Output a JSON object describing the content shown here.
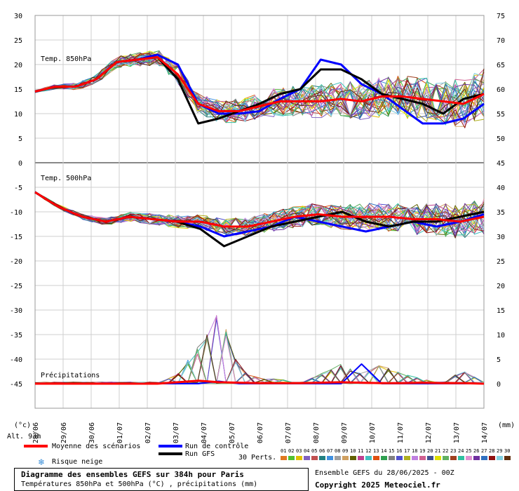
{
  "colors": {
    "mean": "#ff0000",
    "control": "#0000ff",
    "gfs": "#000000",
    "grid": "#c8c8c8",
    "snow": "#3a8fd9"
  },
  "labels": {
    "t850": "Temp. 850hPa",
    "t500": "Temp. 500hPa",
    "precip": "Précipitations",
    "unit_left": "(°c)",
    "unit_right": "(mm)",
    "altitude": "Alt. 93m",
    "mean_legend": "Moyenne des scénarios",
    "control_legend": "Run de contrôle",
    "gfs_legend": "Run GFS",
    "snow_legend": "Risque neige",
    "perts": "30 Perts.",
    "title_line1": "Diagramme des ensembles GEFS sur 384h pour Paris",
    "title_line2": "Températures 850hPa et 500hPa (°C) , précipitations (mm)",
    "run_info": "Ensemble GEFS du 28/06/2025 - 00Z",
    "copyright": "Copyright 2025 Meteociel.fr"
  },
  "pert_labels": [
    "01",
    "02",
    "03",
    "04",
    "05",
    "06",
    "07",
    "08",
    "09",
    "10",
    "11",
    "12",
    "13",
    "14",
    "15",
    "16",
    "17",
    "18",
    "19",
    "20",
    "21",
    "22",
    "23",
    "24",
    "25",
    "26",
    "27",
    "28",
    "29",
    "30"
  ],
  "pert_colors": [
    "#e07820",
    "#50c030",
    "#e0c000",
    "#8060c0",
    "#c05050",
    "#208080",
    "#4090e0",
    "#a0a0a0",
    "#d0a060",
    "#606000",
    "#c04090",
    "#40c0c0",
    "#e05010",
    "#30a050",
    "#808080",
    "#5050d0",
    "#b0b020",
    "#c080e0",
    "#d06090",
    "#405090",
    "#e0e000",
    "#60b060",
    "#a04020",
    "#30c0a0",
    "#e090d0",
    "#7030a0",
    "#3070c0",
    "#901010",
    "#80d0e0",
    "#603010"
  ],
  "chart_data": {
    "type": "line",
    "x_dates": [
      "28/06",
      "29/06",
      "30/06",
      "01/07",
      "02/07",
      "03/07",
      "04/07",
      "05/07",
      "06/07",
      "07/07",
      "08/07",
      "09/07",
      "10/07",
      "11/07",
      "12/07",
      "13/07",
      "14/07"
    ],
    "left_axis_ticks": [
      30,
      25,
      20,
      15,
      10,
      5,
      0,
      -5,
      -10,
      -15,
      -20,
      -25,
      -30,
      -35,
      -40,
      -45
    ],
    "right_axis_ticks": [
      75,
      70,
      65,
      60,
      55,
      50,
      45,
      40,
      35,
      30,
      25,
      20,
      15,
      10,
      5,
      0
    ],
    "ylim_left": [
      -50,
      30
    ],
    "ylim_right": [
      -5,
      75
    ],
    "t850_mean": [
      14.5,
      15.5,
      15.5,
      17,
      20.5,
      21,
      21.5,
      18,
      12,
      10.5,
      10.5,
      11.5,
      12.5,
      12.5,
      12.5,
      13,
      12.5,
      13.5,
      13.5,
      13,
      12.5,
      12,
      14
    ],
    "t850_control": [
      14.5,
      15.5,
      15.5,
      17,
      20.5,
      21,
      22,
      20,
      12,
      10,
      10,
      10.5,
      13,
      15,
      21,
      20,
      16,
      14,
      11,
      8,
      8,
      9,
      12
    ],
    "t850_gfs": [
      14.5,
      15.5,
      15.5,
      17,
      20.5,
      21,
      21.5,
      17,
      8,
      9,
      10.5,
      12,
      14,
      15,
      19,
      19,
      17,
      14,
      13,
      12,
      10,
      13,
      14
    ],
    "t500_mean": [
      -6,
      -9,
      -11,
      -12,
      -11,
      -11.5,
      -12,
      -12,
      -13,
      -13,
      -12,
      -11,
      -10.5,
      -11,
      -11,
      -11,
      -11.5,
      -11.5,
      -12,
      -11
    ],
    "t500_control": [
      -6,
      -9,
      -11,
      -12,
      -11,
      -11.5,
      -12,
      -13,
      -15,
      -14,
      -13,
      -11,
      -12,
      -13,
      -14,
      -13,
      -12,
      -13,
      -12,
      -10.5
    ],
    "t500_gfs": [
      -6,
      -9,
      -11,
      -12,
      -11,
      -11.5,
      -12,
      -13.5,
      -17,
      -15,
      -13,
      -12,
      -11,
      -10,
      -12,
      -13,
      -12,
      -12,
      -11,
      -10
    ],
    "precip_mean_mm": [
      0,
      0,
      0,
      0,
      0,
      0,
      0,
      0.3,
      0.6,
      0.3,
      0.2,
      0.1,
      0.1,
      0.1,
      0.2,
      0.3,
      0.2,
      0.1,
      0.1,
      0.2,
      0.1,
      0.1,
      0
    ],
    "precip_control_mm": [
      0,
      0,
      0,
      0,
      0,
      0,
      0,
      0,
      0,
      0.5,
      0,
      0,
      0,
      0,
      0,
      0,
      4,
      0,
      0,
      0,
      0,
      0,
      0
    ],
    "precip_peak_members_mm": [
      0,
      0,
      0,
      0,
      0,
      0,
      0,
      2,
      8,
      16,
      3,
      1,
      1,
      0,
      2,
      4,
      2,
      4,
      2,
      1,
      0,
      3,
      0
    ],
    "legend": [
      "Moyenne des scénarios",
      "Run de contrôle",
      "Run GFS",
      "Risque neige"
    ]
  }
}
